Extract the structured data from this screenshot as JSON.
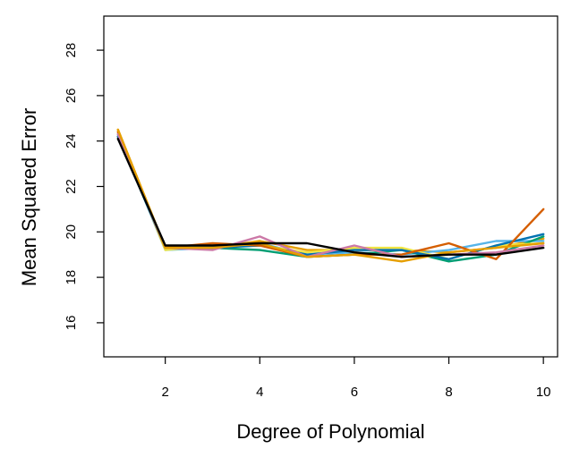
{
  "chart_data": {
    "type": "line",
    "title": "",
    "xlabel": "Degree of Polynomial",
    "ylabel": "Mean Squared Error",
    "xlim": [
      0.7,
      10.3
    ],
    "ylim": [
      14.5,
      29.5
    ],
    "x": [
      1,
      2,
      3,
      4,
      5,
      6,
      7,
      8,
      9,
      10
    ],
    "x_ticks": [
      "2",
      "4",
      "6",
      "8",
      "10"
    ],
    "y_ticks": [
      "16",
      "18",
      "20",
      "22",
      "24",
      "26",
      "28"
    ],
    "grid": false,
    "legend": "none",
    "series": [
      {
        "color": "#E69F00",
        "values": [
          24.5,
          19.3,
          19.3,
          19.6,
          19.2,
          19.2,
          19.2,
          19.1,
          19.3,
          19.7
        ]
      },
      {
        "color": "#56B4E9",
        "values": [
          24.3,
          19.2,
          19.3,
          19.5,
          19.0,
          19.1,
          19.0,
          19.2,
          19.6,
          19.6
        ]
      },
      {
        "color": "#009E73",
        "values": [
          24.2,
          19.3,
          19.3,
          19.2,
          18.9,
          19.0,
          19.2,
          18.7,
          19.0,
          19.8
        ]
      },
      {
        "color": "#F0E442",
        "values": [
          24.4,
          19.2,
          19.4,
          19.4,
          19.1,
          19.3,
          19.3,
          18.8,
          19.4,
          19.5
        ]
      },
      {
        "color": "#0072B2",
        "values": [
          24.2,
          19.3,
          19.3,
          19.4,
          19.0,
          19.2,
          19.2,
          18.8,
          19.4,
          19.9
        ]
      },
      {
        "color": "#D55E00",
        "values": [
          24.4,
          19.3,
          19.5,
          19.4,
          18.9,
          19.0,
          19.0,
          19.5,
          18.8,
          21.0
        ]
      },
      {
        "color": "#CC79A7",
        "values": [
          24.3,
          19.3,
          19.2,
          19.8,
          18.9,
          19.4,
          18.9,
          19.0,
          19.1,
          19.4
        ]
      },
      {
        "color": "#E69F00",
        "values": [
          24.5,
          19.3,
          19.3,
          19.5,
          18.9,
          19.0,
          18.7,
          19.1,
          19.3,
          19.5
        ]
      },
      {
        "color": "#000000",
        "values": [
          24.1,
          19.4,
          19.4,
          19.5,
          19.5,
          19.1,
          18.9,
          19.0,
          19.0,
          19.3
        ]
      }
    ]
  }
}
